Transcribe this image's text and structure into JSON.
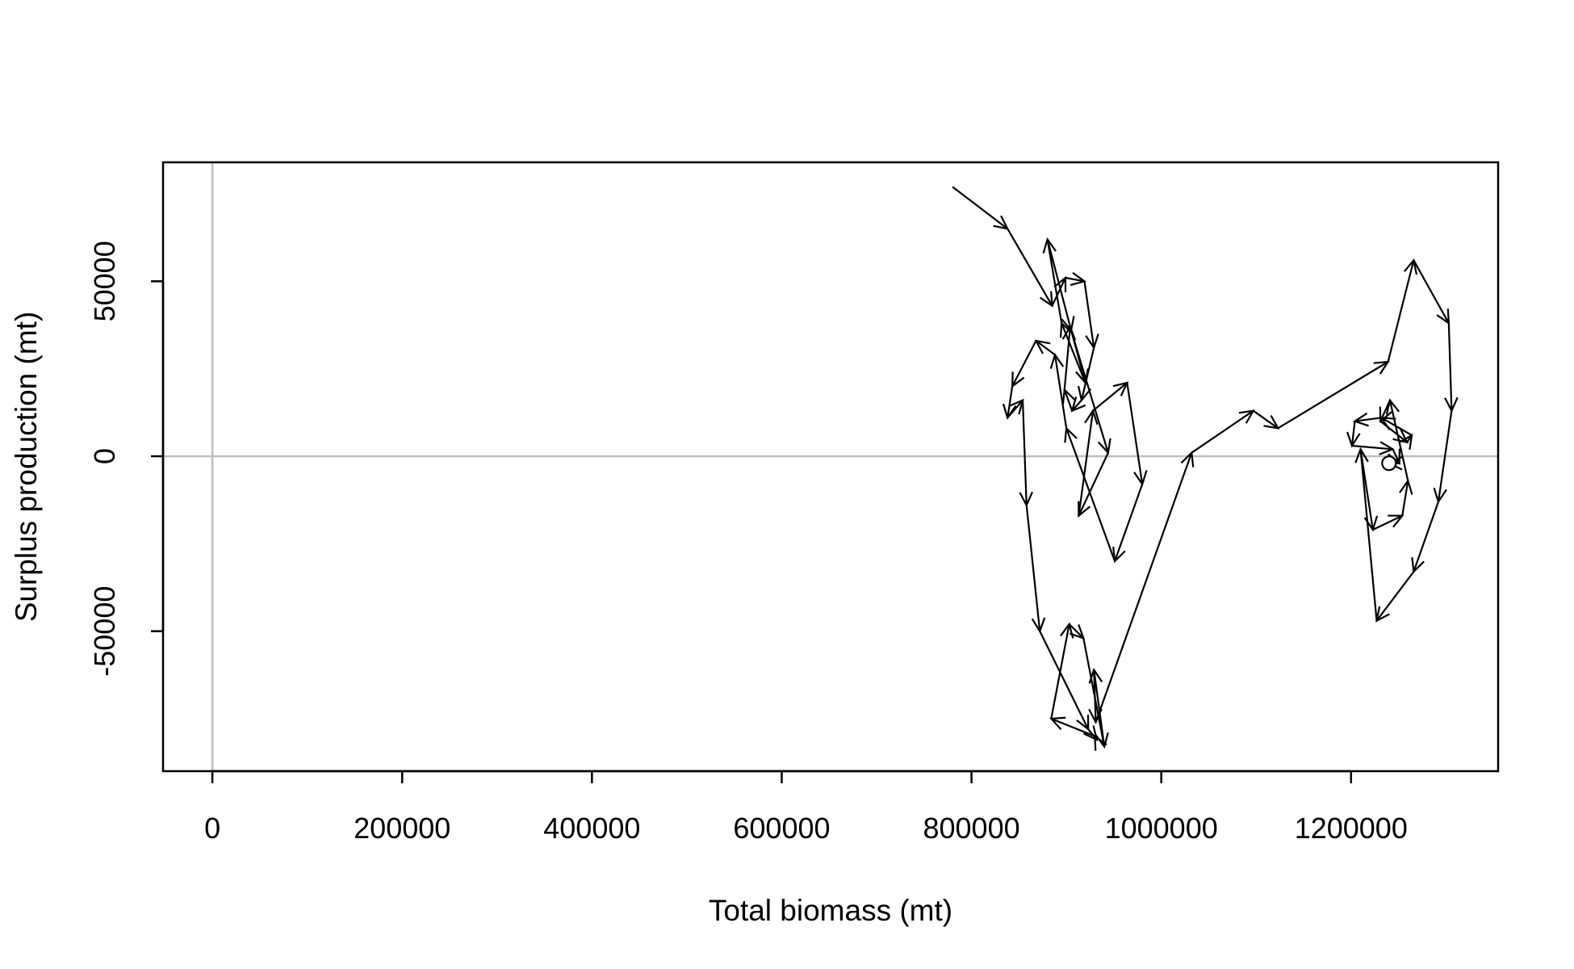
{
  "chart_data": {
    "type": "line",
    "title": "",
    "xlabel": "Total biomass (mt)",
    "ylabel": "Surplus production (mt)",
    "xlim": [
      -52000,
      1355000
    ],
    "ylim": [
      -90000,
      84000
    ],
    "x_ticks": [
      0,
      200000,
      400000,
      600000,
      800000,
      1000000,
      1200000
    ],
    "x_tick_labels": [
      "0",
      "200000",
      "400000",
      "600000",
      "800000",
      "1000000",
      "1200000"
    ],
    "y_ticks": [
      -50000,
      0,
      50000
    ],
    "y_tick_labels": [
      "-50000",
      "0",
      "50000"
    ],
    "reference_lines": {
      "horizontal": 0,
      "vertical": 0,
      "color": "#bebebe"
    },
    "grid": false,
    "legend": "none",
    "line_color": "#000000",
    "arrows": true,
    "end_marker": "open circle",
    "series": [
      {
        "x": [
          780000,
          838000,
          885000,
          899000,
          919000,
          929000,
          916000,
          906000,
          898000,
          904000,
          920000,
          895000,
          880000,
          905000,
          944000,
          913000,
          928000,
          964000,
          980000,
          951000,
          900000,
          888000,
          868000,
          843000,
          838000,
          854000,
          858000,
          872000,
          923000,
          932000,
          930000,
          884000,
          903000,
          918000,
          940000,
          929000,
          931000,
          1032000,
          1097000,
          1123000,
          1239000,
          1266000,
          1303000,
          1306000,
          1292000,
          1266000,
          1227000,
          1210000,
          1223000,
          1254000,
          1260000,
          1241000,
          1231000,
          1259000,
          1264000,
          1232000,
          1204000,
          1201000,
          1244000,
          1251000,
          1240000
        ],
        "y": [
          77000,
          65000,
          43000,
          51000,
          50000,
          31000,
          16000,
          13000,
          19000,
          37000,
          21000,
          38000,
          62000,
          36000,
          1000,
          -17000,
          13000,
          21000,
          -8000,
          -30000,
          8000,
          29000,
          33000,
          20000,
          11000,
          16000,
          -14000,
          -50000,
          -78000,
          -81000,
          -80000,
          -75000,
          -48000,
          -52000,
          -83000,
          -61000,
          -76000,
          1000,
          13000,
          8000,
          27000,
          56000,
          38000,
          13000,
          -13000,
          -33000,
          -47000,
          2000,
          -21000,
          -17000,
          -7000,
          16000,
          10000,
          4000,
          6000,
          11000,
          10000,
          3000,
          2000,
          -2000,
          -2000
        ]
      }
    ]
  }
}
